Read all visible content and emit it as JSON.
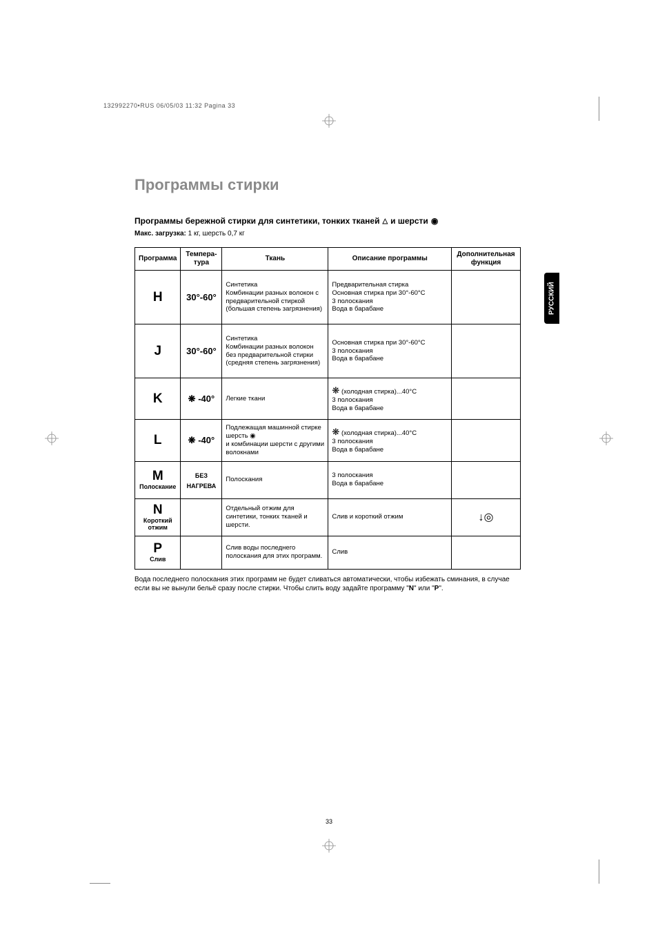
{
  "print_header": "132992270•RUS  06/05/03  11:32  Pagina 33",
  "main_title": "Программы стирки",
  "subtitle_part1": "Программы бережной стирки для синтетики, тонких тканей",
  "subtitle_part2": "и шерсти",
  "triangle_icon": "△",
  "wool_icon": "◉",
  "max_load_label": "Макс. загрузка:",
  "max_load_value": " 1 кг, шерсть 0,7 кг",
  "headers": {
    "program": "Программа",
    "temp": "Темпера-\nтура",
    "fabric": "Ткань",
    "desc": "Описание\nпрограммы",
    "extra": "Дополнительная\nфункция"
  },
  "rows": [
    {
      "letter": "H",
      "sub": "",
      "temp": "30°-60°",
      "temp_prefix": "",
      "fabric": "Синтетика\nКомбинации разных волокон с предварительной стиркой (большая степень загрязнения)",
      "desc": "Предварительная стирка\nОсновная стирка при 30°-60°C\n3 полоскания\nВода в барабане",
      "extra": ""
    },
    {
      "letter": "J",
      "sub": "",
      "temp": "30°-60°",
      "temp_prefix": "",
      "fabric": "Синтетика\nКомбинации разных волокон без предварительной стирки (средняя степень загрязнения)",
      "desc": "Основная стирка при 30°-60°C\n3 полоскания\nВода в барабане",
      "extra": ""
    },
    {
      "letter": "K",
      "sub": "",
      "temp": "-40°",
      "temp_prefix": "❋",
      "fabric": "Легкие ткани",
      "desc_prefix": "❋",
      "desc": " (холодная стирка)...40°C\n3 полоскания\nВода в барабане",
      "extra": ""
    },
    {
      "letter": "L",
      "sub": "",
      "temp": "-40°",
      "temp_prefix": "❋",
      "fabric": "Подлежащая машинной стирке шерсть ◉\nи комбинации шерсти с другими волокнами",
      "desc_prefix": "❋",
      "desc": " (холодная стирка)...40°C\n3 полоскания\nВода в барабане",
      "extra": ""
    },
    {
      "letter": "M",
      "sub": "Полоскание",
      "temp": "БЕЗ\nНАГРЕВА",
      "temp_prefix": "",
      "fabric": "Полоскания",
      "desc": "3 полоскания\nВода в барабане",
      "extra": ""
    },
    {
      "letter": "N",
      "sub": "Короткий\nотжим",
      "temp": "",
      "temp_prefix": "",
      "fabric": "Отдельный отжим для синтетики, тонких тканей и шерсти.",
      "desc": "Слив и короткий отжим",
      "extra": "↓◎"
    },
    {
      "letter": "P",
      "sub": "Слив",
      "temp": "",
      "temp_prefix": "",
      "fabric": "Слив воды последнего полоскания для этих программ.",
      "desc": "Слив",
      "extra": ""
    }
  ],
  "footer_note": "Вода последнего полоскания этих программ не будет сливаться автоматически, чтобы избежать сминания, в случае если вы не вынули бельё сразу после стирки. Чтобы слить воду задайте программу \"N\" или \"P\".",
  "page_num": "33",
  "side_tab": "РУССКИЙ"
}
